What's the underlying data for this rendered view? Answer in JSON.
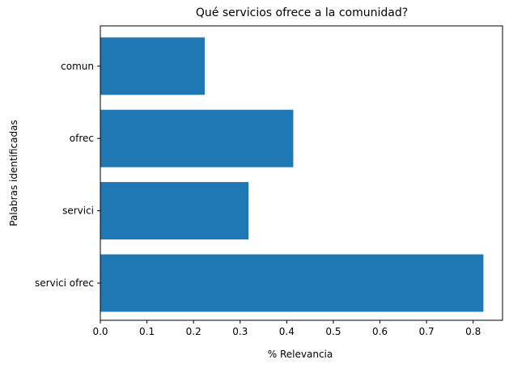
{
  "chart_data": {
    "type": "bar",
    "orientation": "horizontal",
    "title": "Qué servicios ofrece a la comunidad?",
    "xlabel": "% Relevancia",
    "ylabel": "Palabras identificadas",
    "categories": [
      "servici ofrec",
      "servici",
      "ofrec",
      "comun"
    ],
    "values": [
      0.822,
      0.318,
      0.414,
      0.224
    ],
    "xlim": [
      0,
      0.863
    ],
    "xticks": [
      "0.0",
      "0.1",
      "0.2",
      "0.3",
      "0.4",
      "0.5",
      "0.6",
      "0.7",
      "0.8"
    ],
    "grid": false,
    "bar_color": "#1f77b4"
  }
}
